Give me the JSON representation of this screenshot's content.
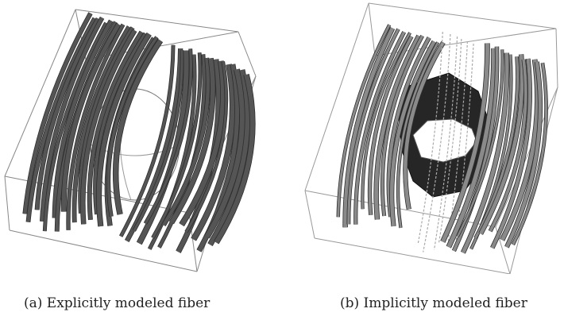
{
  "figure": {
    "panel_a": {
      "caption": "(a) Explicitly modeled fiber",
      "fiber_color": "#555555",
      "wire_color": "#888888"
    },
    "panel_b": {
      "caption": "(b) Implicitly modeled fiber",
      "fiber_color": "#8a8a8a",
      "hole_color": "#262626",
      "wire_color": "#999999"
    }
  }
}
